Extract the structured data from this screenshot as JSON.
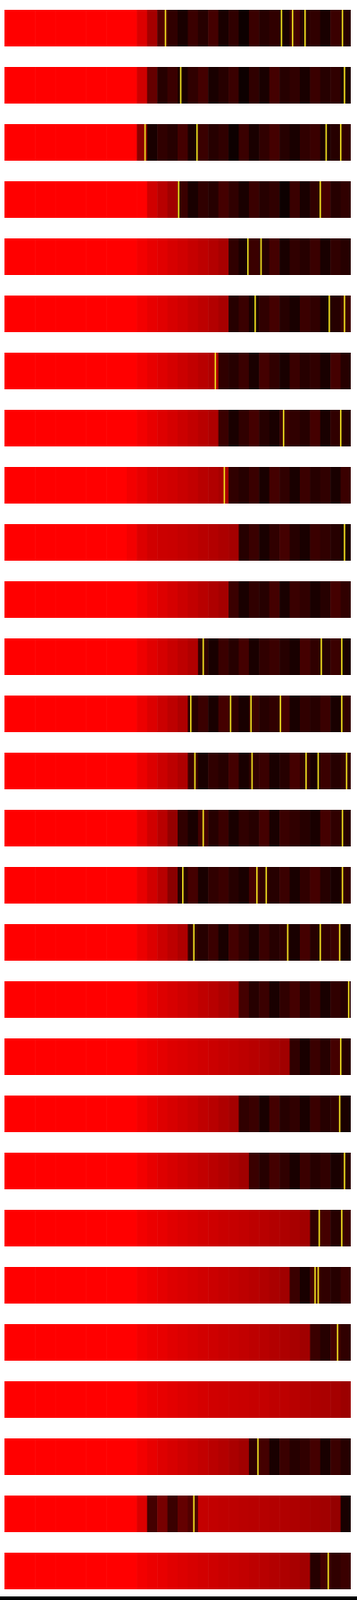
{
  "chart_data": {
    "type": "heatmap",
    "xlim": [
      0,
      100
    ],
    "tick_labels": false,
    "color_range": [
      0,
      1
    ],
    "rows": [
      {
        "values": [
          1,
          1,
          1,
          1,
          1,
          1,
          1,
          1,
          1,
          1,
          1,
          1,
          1,
          0.85,
          0.62,
          0.35,
          0.2,
          0.1,
          0.25,
          0.15,
          0.3,
          0.1,
          0.2,
          0.05,
          0.25,
          0.15,
          0.2,
          0.1,
          0.3,
          0.15,
          0.2,
          0.1,
          0.25,
          0.15
        ],
        "yellow_lines": [
          46.5,
          80,
          83.2,
          86.8,
          97.6
        ]
      },
      {
        "values": [
          1,
          1,
          1,
          1,
          1,
          1,
          1,
          1,
          1,
          1,
          1,
          1,
          1,
          0.8,
          0.4,
          0.15,
          0.25,
          0.1,
          0.2,
          0.3,
          0.1,
          0.15,
          0.25,
          0.05,
          0.2,
          0.1,
          0.3,
          0.15,
          0.2,
          0.1,
          0.25,
          0.15,
          0.2,
          0.1
        ],
        "yellow_lines": [
          50.9,
          98.2
        ]
      },
      {
        "values": [
          1,
          1,
          1,
          1,
          1,
          1,
          1,
          1,
          1,
          1,
          1,
          1,
          1,
          0.5,
          0.1,
          0.2,
          0.15,
          0.3,
          0.1,
          0.25,
          0.15,
          0.2,
          0.05,
          0.25,
          0.1,
          0.2,
          0.3,
          0.15,
          0.1,
          0.2,
          0.25,
          0.1,
          0.15,
          0.2
        ],
        "yellow_lines": [
          40.6,
          55.6,
          92.9,
          97.1
        ]
      },
      {
        "values": [
          1,
          1,
          1,
          1,
          1,
          1,
          1,
          1,
          1,
          1,
          1,
          1,
          1,
          1,
          0.8,
          0.7,
          0.6,
          0.25,
          0.1,
          0.2,
          0.15,
          0.3,
          0.2,
          0.1,
          0.25,
          0.15,
          0.2,
          0.05,
          0.25,
          0.1,
          0.2,
          0.3,
          0.15,
          0.2
        ],
        "yellow_lines": [
          50.3,
          91.2
        ]
      },
      {
        "values": [
          1,
          1,
          1,
          1,
          1,
          1,
          1,
          1,
          1,
          1,
          1,
          1,
          1,
          0.95,
          0.9,
          0.87,
          0.83,
          0.8,
          0.76,
          0.72,
          0.68,
          0.63,
          0.2,
          0.1,
          0.25,
          0.15,
          0.3,
          0.1,
          0.2,
          0.15,
          0.25,
          0.1,
          0.2,
          0.15
        ],
        "yellow_lines": [
          70.3,
          74.1
        ]
      },
      {
        "values": [
          1,
          1,
          1,
          1,
          1,
          1,
          1,
          1,
          1,
          1,
          1,
          1,
          1,
          0.95,
          0.9,
          0.87,
          0.83,
          0.8,
          0.76,
          0.72,
          0.68,
          0.63,
          0.15,
          0.25,
          0.1,
          0.2,
          0.3,
          0.15,
          0.1,
          0.25,
          0.2,
          0.1,
          0.15,
          0.25
        ],
        "yellow_lines": [
          72.4,
          93.8,
          98.2
        ]
      },
      {
        "values": [
          1,
          1,
          1,
          1,
          1,
          1,
          1,
          1,
          1,
          1,
          1,
          1,
          1,
          0.95,
          0.9,
          0.86,
          0.82,
          0.78,
          0.74,
          0.7,
          0.66,
          0.2,
          0.15,
          0.25,
          0.1,
          0.3,
          0.2,
          0.1,
          0.25,
          0.15,
          0.2,
          0.1,
          0.3,
          0.15
        ],
        "yellow_lines": [
          60.9
        ]
      },
      {
        "values": [
          1,
          1,
          1,
          1,
          1,
          1,
          1,
          1,
          1,
          1,
          1,
          1,
          1,
          0.95,
          0.9,
          0.86,
          0.82,
          0.78,
          0.74,
          0.7,
          0.66,
          0.25,
          0.1,
          0.2,
          0.3,
          0.15,
          0.1,
          0.25,
          0.2,
          0.15,
          0.3,
          0.1,
          0.2,
          0.15
        ],
        "yellow_lines": [
          80.6,
          97.1
        ]
      },
      {
        "values": [
          1,
          1,
          1,
          1,
          1,
          1,
          1,
          1,
          1,
          1,
          1,
          1,
          0.95,
          0.9,
          0.85,
          0.82,
          0.8,
          0.77,
          0.74,
          0.7,
          0.67,
          0.63,
          0.2,
          0.15,
          0.25,
          0.1,
          0.3,
          0.2,
          0.1,
          0.25,
          0.15,
          0.2,
          0.1,
          0.25
        ],
        "yellow_lines": [
          63.5
        ]
      },
      {
        "values": [
          1,
          1,
          1,
          1,
          1,
          1,
          1,
          1,
          1,
          1,
          1,
          1,
          0.95,
          0.85,
          0.8,
          0.78,
          0.77,
          0.75,
          0.73,
          0.7,
          0.68,
          0.65,
          0.62,
          0.15,
          0.25,
          0.1,
          0.2,
          0.3,
          0.15,
          0.1,
          0.25,
          0.2,
          0.15,
          0.1
        ],
        "yellow_lines": [
          98.2
        ]
      },
      {
        "values": [
          1,
          1,
          1,
          1,
          1,
          1,
          1,
          1,
          1,
          1,
          1,
          1,
          1,
          0.95,
          0.9,
          0.86,
          0.82,
          0.78,
          0.74,
          0.7,
          0.66,
          0.62,
          0.25,
          0.1,
          0.2,
          0.15,
          0.3,
          0.1,
          0.25,
          0.2,
          0.1,
          0.15,
          0.3,
          0.2
        ],
        "yellow_lines": []
      },
      {
        "values": [
          1,
          1,
          1,
          1,
          1,
          1,
          1,
          1,
          1,
          1,
          1,
          1,
          1,
          0.93,
          0.87,
          0.82,
          0.77,
          0.72,
          0.67,
          0.2,
          0.1,
          0.25,
          0.15,
          0.3,
          0.1,
          0.2,
          0.25,
          0.15,
          0.1,
          0.3,
          0.2,
          0.15,
          0.25,
          0.1
        ],
        "yellow_lines": [
          57.4,
          91.5,
          97.4
        ]
      },
      {
        "values": [
          1,
          1,
          1,
          1,
          1,
          1,
          1,
          1,
          1,
          1,
          1,
          1,
          1,
          0.92,
          0.85,
          0.78,
          0.72,
          0.66,
          0.15,
          0.25,
          0.1,
          0.3,
          0.2,
          0.1,
          0.25,
          0.15,
          0.2,
          0.3,
          0.1,
          0.2,
          0.15,
          0.25,
          0.1,
          0.2
        ],
        "yellow_lines": [
          53.8,
          65.3,
          71.2,
          79.7,
          97.4
        ]
      },
      {
        "values": [
          1,
          1,
          1,
          1,
          1,
          1,
          1,
          1,
          1,
          1,
          1,
          1,
          1,
          0.92,
          0.85,
          0.78,
          0.72,
          0.66,
          0.25,
          0.1,
          0.2,
          0.15,
          0.3,
          0.1,
          0.2,
          0.25,
          0.1,
          0.15,
          0.3,
          0.2,
          0.1,
          0.25,
          0.15,
          0.2
        ],
        "yellow_lines": [
          55,
          71.5,
          87.1,
          90.6,
          98.8
        ]
      },
      {
        "values": [
          1,
          1,
          1,
          1,
          1,
          1,
          1,
          1,
          1,
          1,
          1,
          1,
          1,
          0.9,
          0.8,
          0.7,
          0.55,
          0.2,
          0.1,
          0.3,
          0.15,
          0.25,
          0.1,
          0.2,
          0.15,
          0.3,
          0.1,
          0.25,
          0.2,
          0.15,
          0.1,
          0.3,
          0.2,
          0.15
        ],
        "yellow_lines": [
          57.4,
          97.6
        ]
      },
      {
        "values": [
          1,
          1,
          1,
          1,
          1,
          1,
          1,
          1,
          1,
          1,
          1,
          1,
          1,
          0.9,
          0.8,
          0.7,
          0.5,
          0.15,
          0.3,
          0.1,
          0.2,
          0.25,
          0.15,
          0.1,
          0.3,
          0.2,
          0.15,
          0.25,
          0.1,
          0.2,
          0.3,
          0.15,
          0.1,
          0.2
        ],
        "yellow_lines": [
          51.5,
          72.9,
          75.6,
          97.6
        ]
      },
      {
        "values": [
          1,
          1,
          1,
          1,
          1,
          1,
          1,
          1,
          1,
          1,
          1,
          1,
          1,
          0.92,
          0.85,
          0.78,
          0.72,
          0.66,
          0.2,
          0.15,
          0.25,
          0.1,
          0.3,
          0.2,
          0.1,
          0.25,
          0.15,
          0.2,
          0.1,
          0.3,
          0.15,
          0.2,
          0.25,
          0.1
        ],
        "yellow_lines": [
          54.7,
          81.8,
          91.2,
          96.8
        ]
      },
      {
        "values": [
          1,
          1,
          1,
          1,
          1,
          1,
          1,
          1,
          1,
          1,
          1,
          1,
          1,
          0.95,
          0.9,
          0.86,
          0.83,
          0.8,
          0.77,
          0.73,
          0.7,
          0.66,
          0.62,
          0.3,
          0.15,
          0.25,
          0.1,
          0.2,
          0.3,
          0.15,
          0.25,
          0.1,
          0.2,
          0.15
        ],
        "yellow_lines": [
          99.4
        ]
      },
      {
        "values": [
          1,
          1,
          1,
          1,
          1,
          1,
          1,
          1,
          1,
          1,
          1,
          1,
          1,
          0.95,
          0.92,
          0.89,
          0.86,
          0.84,
          0.82,
          0.8,
          0.78,
          0.76,
          0.74,
          0.72,
          0.7,
          0.67,
          0.64,
          0.6,
          0.2,
          0.1,
          0.25,
          0.15,
          0.3,
          0.15
        ],
        "yellow_lines": [
          97.1
        ]
      },
      {
        "values": [
          1,
          1,
          1,
          1,
          1,
          1,
          1,
          1,
          1,
          1,
          1,
          1,
          1,
          0.95,
          0.9,
          0.86,
          0.83,
          0.8,
          0.77,
          0.73,
          0.7,
          0.66,
          0.62,
          0.2,
          0.25,
          0.1,
          0.3,
          0.15,
          0.2,
          0.1,
          0.25,
          0.15,
          0.2,
          0.1
        ],
        "yellow_lines": [
          96.8
        ]
      },
      {
        "values": [
          1,
          1,
          1,
          1,
          1,
          1,
          1,
          1,
          1,
          1,
          1,
          1,
          1,
          0.95,
          0.9,
          0.86,
          0.83,
          0.8,
          0.77,
          0.74,
          0.71,
          0.68,
          0.64,
          0.6,
          0.25,
          0.15,
          0.3,
          0.2,
          0.1,
          0.25,
          0.15,
          0.2,
          0.1,
          0.15
        ],
        "yellow_lines": [
          98.2
        ]
      },
      {
        "values": [
          1,
          1,
          1,
          1,
          1,
          1,
          1,
          1,
          1,
          1,
          1,
          1,
          1,
          0.95,
          0.92,
          0.9,
          0.87,
          0.85,
          0.83,
          0.81,
          0.79,
          0.77,
          0.76,
          0.74,
          0.72,
          0.7,
          0.68,
          0.66,
          0.63,
          0.6,
          0.2,
          0.3,
          0.15,
          0.25
        ],
        "yellow_lines": [
          90.9,
          97.4
        ]
      },
      {
        "values": [
          1,
          1,
          1,
          1,
          1,
          1,
          1,
          1,
          1,
          1,
          1,
          1,
          1,
          0.95,
          0.92,
          0.89,
          0.86,
          0.84,
          0.82,
          0.8,
          0.78,
          0.76,
          0.74,
          0.72,
          0.7,
          0.67,
          0.64,
          0.6,
          0.25,
          0.1,
          0.3,
          0.2,
          0.15,
          0.25
        ],
        "yellow_lines": [
          89.7,
          90.6
        ]
      },
      {
        "values": [
          1,
          1,
          1,
          1,
          1,
          1,
          1,
          1,
          1,
          1,
          1,
          1,
          1,
          0.95,
          0.92,
          0.9,
          0.87,
          0.85,
          0.83,
          0.81,
          0.79,
          0.77,
          0.76,
          0.74,
          0.72,
          0.7,
          0.68,
          0.66,
          0.63,
          0.6,
          0.25,
          0.15,
          0.3,
          0.2
        ],
        "yellow_lines": [
          96.2
        ]
      },
      {
        "values": [
          1,
          1,
          1,
          1,
          1,
          1,
          1,
          1,
          1,
          1,
          1,
          1,
          1,
          0.95,
          0.92,
          0.9,
          0.88,
          0.86,
          0.84,
          0.82,
          0.8,
          0.79,
          0.78,
          0.77,
          0.76,
          0.75,
          0.73,
          0.72,
          0.7,
          0.68,
          0.66,
          0.64,
          0.62,
          0.58
        ],
        "yellow_lines": []
      },
      {
        "values": [
          1,
          1,
          1,
          1,
          1,
          1,
          1,
          1,
          1,
          1,
          1,
          1,
          1,
          0.95,
          0.9,
          0.86,
          0.83,
          0.8,
          0.77,
          0.74,
          0.71,
          0.68,
          0.64,
          0.6,
          0.2,
          0.3,
          0.1,
          0.25,
          0.15,
          0.2,
          0.3,
          0.1,
          0.25,
          0.15
        ],
        "yellow_lines": [
          73.2
        ]
      },
      {
        "values": [
          1,
          1,
          1,
          1,
          1,
          1,
          1,
          1,
          1,
          1,
          1,
          1,
          1,
          0.85,
          0.3,
          0.45,
          0.25,
          0.4,
          0.35,
          0.75,
          0.74,
          0.73,
          0.72,
          0.71,
          0.7,
          0.69,
          0.68,
          0.67,
          0.66,
          0.64,
          0.62,
          0.6,
          0.55,
          0.1
        ],
        "yellow_lines": [
          54.7
        ]
      },
      {
        "values": [
          1,
          1,
          1,
          1,
          1,
          1,
          1,
          1,
          1,
          1,
          1,
          1,
          1,
          0.95,
          0.92,
          0.9,
          0.87,
          0.85,
          0.83,
          0.81,
          0.79,
          0.77,
          0.76,
          0.74,
          0.72,
          0.7,
          0.68,
          0.66,
          0.63,
          0.6,
          0.15,
          0.3,
          0.2,
          0.25
        ],
        "yellow_lines": [
          93.5
        ]
      }
    ]
  }
}
